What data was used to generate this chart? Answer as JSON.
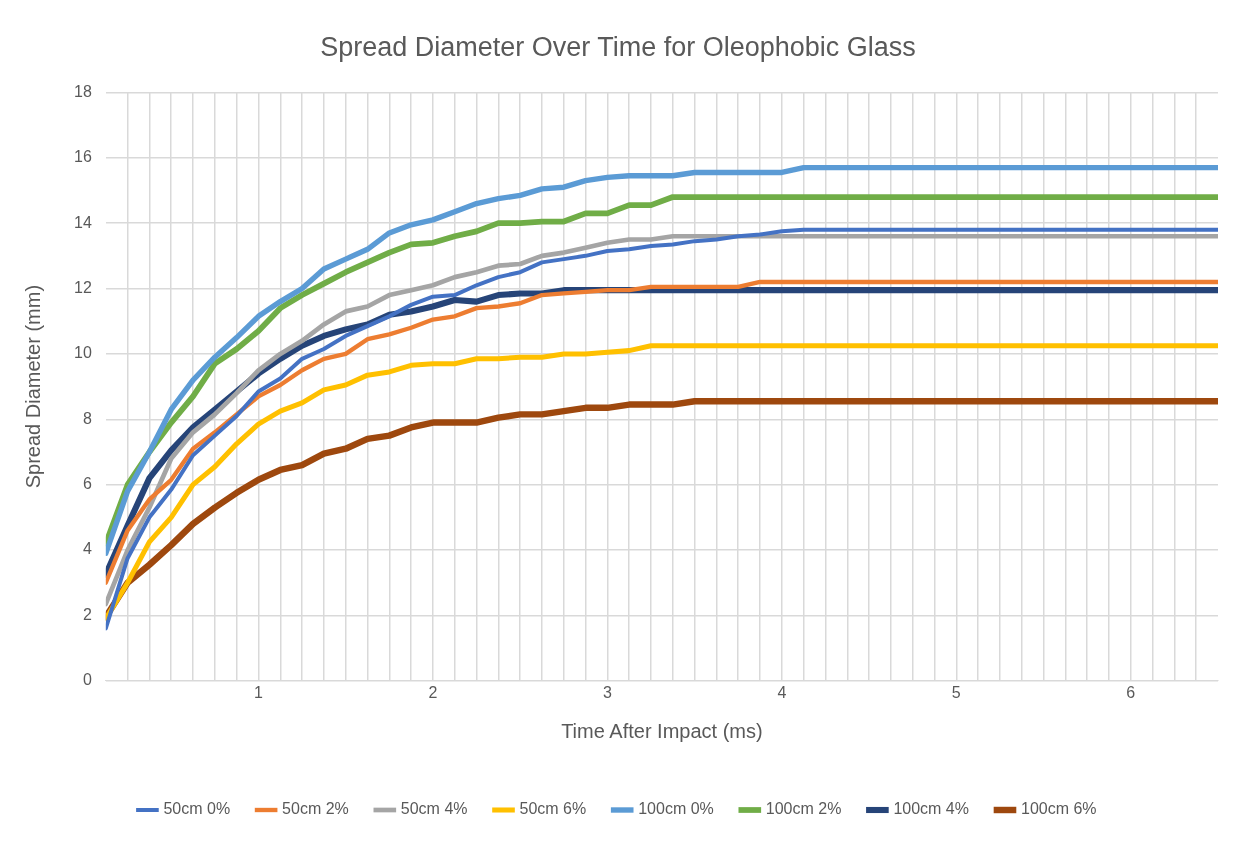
{
  "chart_data": {
    "type": "line",
    "title": "Spread Diameter Over Time for Oleophobic Glass",
    "xlabel": "Time After Impact (ms)",
    "ylabel": "Spread Diameter (mm)",
    "x": [
      0.125,
      0.25,
      0.375,
      0.5,
      0.625,
      0.75,
      0.875,
      1,
      1.125,
      1.25,
      1.375,
      1.5,
      1.625,
      1.75,
      1.875,
      2,
      2.125,
      2.25,
      2.375,
      2.5,
      2.625,
      2.75,
      2.875,
      3,
      3.125,
      3.25,
      3.375,
      3.5,
      3.625,
      3.75,
      3.875,
      4,
      4.125,
      4.25,
      4.375,
      6.5
    ],
    "series": [
      {
        "name": "50cm 0%",
        "color": "#4472c4",
        "values": [
          1.6,
          3.75,
          5.0,
          5.85,
          6.9,
          7.5,
          8.1,
          8.85,
          9.25,
          9.85,
          10.15,
          10.55,
          10.85,
          11.15,
          11.5,
          11.75,
          11.8,
          12.1,
          12.35,
          12.5,
          12.8,
          12.9,
          13.0,
          13.15,
          13.2,
          13.3,
          13.35,
          13.45,
          13.5,
          13.6,
          13.65,
          13.75,
          13.8,
          13.8,
          13.8,
          13.8
        ]
      },
      {
        "name": "50cm 2%",
        "color": "#ed7d31",
        "values": [
          3.0,
          4.6,
          5.55,
          6.15,
          7.1,
          7.6,
          8.15,
          8.7,
          9.05,
          9.5,
          9.85,
          10.0,
          10.45,
          10.6,
          10.8,
          11.05,
          11.15,
          11.4,
          11.45,
          11.55,
          11.8,
          11.85,
          11.9,
          11.95,
          11.95,
          12.05,
          12.05,
          12.05,
          12.05,
          12.05,
          12.2,
          12.2,
          12.2,
          12.2,
          12.2,
          12.2
        ]
      },
      {
        "name": "50cm 4%",
        "color": "#a5a5a5",
        "values": [
          2.35,
          4.0,
          5.3,
          6.8,
          7.6,
          8.15,
          8.8,
          9.5,
          10.0,
          10.4,
          10.9,
          11.3,
          11.45,
          11.8,
          11.95,
          12.1,
          12.35,
          12.5,
          12.7,
          12.75,
          13.0,
          13.1,
          13.25,
          13.4,
          13.5,
          13.5,
          13.6,
          13.6,
          13.6,
          13.6,
          13.6,
          13.6,
          13.6,
          13.6,
          13.6,
          13.6
        ]
      },
      {
        "name": "50cm 6%",
        "color": "#ffc000",
        "values": [
          1.9,
          3.0,
          4.25,
          5.0,
          6.0,
          6.55,
          7.25,
          7.85,
          8.25,
          8.5,
          8.9,
          9.05,
          9.35,
          9.45,
          9.65,
          9.7,
          9.7,
          9.85,
          9.85,
          9.9,
          9.9,
          10.0,
          10.0,
          10.05,
          10.1,
          10.25,
          10.25,
          10.25,
          10.25,
          10.25,
          10.25,
          10.25,
          10.25,
          10.25,
          10.25,
          10.25
        ]
      },
      {
        "name": "100cm 0%",
        "color": "#5b9bd5",
        "values": [
          3.9,
          5.8,
          7.0,
          8.3,
          9.2,
          9.9,
          10.5,
          11.15,
          11.6,
          12.0,
          12.6,
          12.9,
          13.2,
          13.7,
          13.95,
          14.1,
          14.35,
          14.6,
          14.75,
          14.85,
          15.05,
          15.1,
          15.3,
          15.4,
          15.45,
          15.45,
          15.45,
          15.55,
          15.55,
          15.55,
          15.55,
          15.55,
          15.7,
          15.7,
          15.7,
          15.7
        ]
      },
      {
        "name": "100cm 2%",
        "color": "#70ad47",
        "values": [
          4.2,
          6.0,
          7.0,
          7.9,
          8.7,
          9.7,
          10.15,
          10.7,
          11.4,
          11.8,
          12.15,
          12.5,
          12.8,
          13.1,
          13.35,
          13.4,
          13.6,
          13.75,
          14.0,
          14.0,
          14.05,
          14.05,
          14.3,
          14.3,
          14.55,
          14.55,
          14.8,
          14.8,
          14.8,
          14.8,
          14.8,
          14.8,
          14.8,
          14.8,
          14.8,
          14.8
        ]
      },
      {
        "name": "100cm 4%",
        "color": "#264478",
        "values": [
          3.25,
          4.75,
          6.2,
          7.05,
          7.75,
          8.3,
          8.85,
          9.4,
          9.85,
          10.25,
          10.55,
          10.75,
          10.9,
          11.2,
          11.3,
          11.45,
          11.65,
          11.6,
          11.8,
          11.85,
          11.85,
          11.95,
          11.95,
          11.95,
          11.95,
          11.95,
          11.95,
          11.95,
          11.95,
          11.95,
          11.95,
          11.95,
          11.95,
          11.95,
          11.95,
          11.95
        ]
      },
      {
        "name": "100cm 6%",
        "color": "#9e480e",
        "values": [
          1.95,
          3.0,
          3.55,
          4.15,
          4.8,
          5.3,
          5.75,
          6.15,
          6.45,
          6.6,
          6.95,
          7.1,
          7.4,
          7.5,
          7.75,
          7.9,
          7.9,
          7.9,
          8.05,
          8.15,
          8.15,
          8.25,
          8.35,
          8.35,
          8.45,
          8.45,
          8.45,
          8.55,
          8.55,
          8.55,
          8.55,
          8.55,
          8.55,
          8.55,
          8.55,
          8.55
        ]
      }
    ],
    "xlim": [
      0.125,
      6.5
    ],
    "xticks": [
      {
        "value": 0.25,
        "label": null
      },
      {
        "value": 0.375,
        "label": null
      },
      {
        "value": 0.5,
        "label": null
      },
      {
        "value": 0.625,
        "label": null
      },
      {
        "value": 0.75,
        "label": null
      },
      {
        "value": 0.875,
        "label": null
      },
      1,
      {
        "value": 1.125,
        "label": null
      },
      {
        "value": 1.25,
        "label": null
      },
      {
        "value": 1.375,
        "label": null
      },
      {
        "value": 1.5,
        "label": null
      },
      {
        "value": 1.625,
        "label": null
      },
      {
        "value": 1.75,
        "label": null
      },
      {
        "value": 1.875,
        "label": null
      },
      2,
      {
        "value": 2.125,
        "label": null
      },
      {
        "value": 2.25,
        "label": null
      },
      {
        "value": 2.375,
        "label": null
      },
      {
        "value": 2.5,
        "label": null
      },
      {
        "value": 2.625,
        "label": null
      },
      {
        "value": 2.75,
        "label": null
      },
      {
        "value": 2.875,
        "label": null
      },
      3,
      {
        "value": 3.125,
        "label": null
      },
      {
        "value": 3.25,
        "label": null
      },
      {
        "value": 3.375,
        "label": null
      },
      {
        "value": 3.5,
        "label": null
      },
      {
        "value": 3.625,
        "label": null
      },
      {
        "value": 3.75,
        "label": null
      },
      {
        "value": 3.875,
        "label": null
      },
      4,
      {
        "value": 4.125,
        "label": null
      },
      {
        "value": 4.25,
        "label": null
      },
      {
        "value": 4.375,
        "label": null
      },
      {
        "value": 4.5,
        "label": null
      },
      {
        "value": 4.625,
        "label": null
      },
      {
        "value": 4.75,
        "label": null
      },
      {
        "value": 4.875,
        "label": null
      },
      5,
      {
        "value": 5.125,
        "label": null
      },
      {
        "value": 5.25,
        "label": null
      },
      {
        "value": 5.375,
        "label": null
      },
      {
        "value": 5.5,
        "label": null
      },
      {
        "value": 5.625,
        "label": null
      },
      {
        "value": 5.75,
        "label": null
      },
      {
        "value": 5.875,
        "label": null
      },
      6,
      {
        "value": 6.125,
        "label": null
      },
      {
        "value": 6.25,
        "label": null
      },
      {
        "value": 6.375,
        "label": null
      }
    ],
    "ylim": [
      0,
      18
    ],
    "yticks": [
      0,
      2,
      4,
      6,
      8,
      10,
      12,
      14,
      16,
      18
    ],
    "grid": true,
    "legend": "bottom",
    "marker": "none",
    "line_style": "solid"
  }
}
